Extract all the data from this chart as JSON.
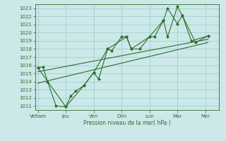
{
  "bg_color": "#cce8e8",
  "grid_color": "#99cccc",
  "line_color": "#2d6e2d",
  "marker_color": "#2d6e2d",
  "xlabel": "Pression niveau de la mer( hPa )",
  "ylim": [
    1010.5,
    1023.5
  ],
  "yticks": [
    1011,
    1012,
    1013,
    1014,
    1015,
    1016,
    1017,
    1018,
    1019,
    1020,
    1021,
    1022,
    1023
  ],
  "xtick_labels": [
    "Ve6am",
    "Jeu",
    "Ven",
    "Dim",
    "Lun",
    "Mar",
    "Mer"
  ],
  "xtick_positions": [
    0,
    1,
    2,
    3,
    4,
    5,
    6
  ],
  "xlim": [
    -0.1,
    6.5
  ],
  "line1_x": [
    0.0,
    0.18,
    0.35,
    0.65,
    1.0,
    1.18,
    1.35,
    1.65,
    2.0,
    2.18,
    2.5,
    2.65,
    3.0,
    3.18,
    3.35,
    3.65,
    4.0,
    4.18,
    4.5,
    4.65,
    5.0,
    5.18,
    5.65,
    6.1
  ],
  "line1_y": [
    1015.7,
    1015.8,
    1014.0,
    1011.0,
    1010.9,
    1012.2,
    1012.8,
    1013.5,
    1015.1,
    1014.3,
    1018.0,
    1017.8,
    1019.5,
    1019.5,
    1018.0,
    1018.0,
    1019.5,
    1019.5,
    1021.5,
    1023.0,
    1021.1,
    1022.1,
    1018.8,
    1019.6
  ],
  "line2_x": [
    0.0,
    1.0,
    1.65,
    2.0,
    2.5,
    3.18,
    3.35,
    4.0,
    4.5,
    4.65,
    5.0,
    5.18,
    5.5,
    6.1
  ],
  "line2_y": [
    1015.7,
    1010.9,
    1013.5,
    1015.1,
    1018.0,
    1019.5,
    1018.0,
    1019.5,
    1021.5,
    1019.5,
    1023.2,
    1022.1,
    1019.0,
    1019.6
  ],
  "trend1_x": [
    0.0,
    6.1
  ],
  "trend1_y": [
    1015.2,
    1019.2
  ],
  "trend2_x": [
    0.0,
    6.1
  ],
  "trend2_y": [
    1013.8,
    1018.8
  ]
}
